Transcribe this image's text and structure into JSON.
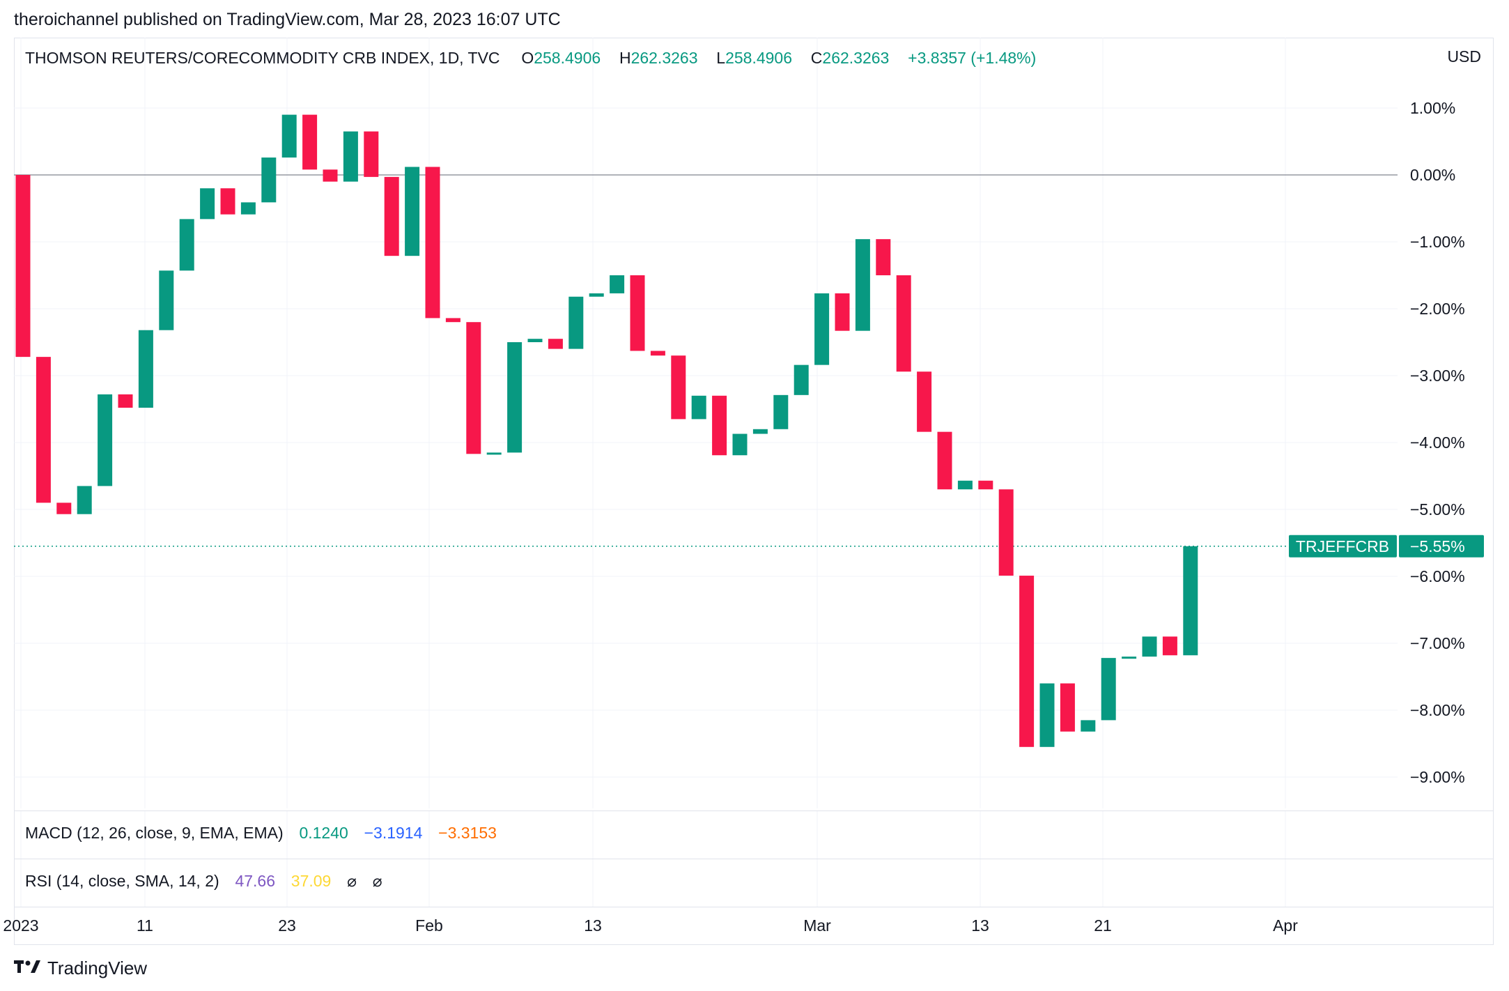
{
  "header": {
    "published": "theroichannel published on TradingView.com, Mar 28, 2023 16:07 UTC"
  },
  "legend": {
    "symbol": "THOMSON REUTERS/CORECOMMODITY CRB INDEX, 1D, TVC",
    "o_label": "O",
    "o_value": "258.4906",
    "h_label": "H",
    "h_value": "262.3263",
    "l_label": "L",
    "l_value": "258.4906",
    "c_label": "C",
    "c_value": "262.3263",
    "change": "+3.8357 (+1.48%)"
  },
  "currency": "USD",
  "macd": {
    "label": "MACD (12, 26, close, 9, EMA, EMA)",
    "v1": "0.1240",
    "v2": "−3.1914",
    "v3": "−3.3153"
  },
  "rsi": {
    "label": "RSI (14, close, SMA, 14, 2)",
    "v1": "47.66",
    "v2": "37.09",
    "v3": "⌀",
    "v4": "⌀"
  },
  "brand": {
    "name": "TradingView"
  },
  "colors": {
    "up": "#089981",
    "down": "#f7174b",
    "grid": "#f0f3fa",
    "macd": "#089981",
    "signal": "#2962ff",
    "hist": "#ff6d00",
    "rsi": "#7e57c2",
    "rsi_ma": "#fdd835"
  },
  "chart_data": {
    "type": "candlestick",
    "title": "THOMSON REUTERS/CORECOMMODITY CRB INDEX, 1D, TVC",
    "ylabel": "USD",
    "y_scale": "percent",
    "ylim": [
      -9.5,
      1.5
    ],
    "y_ticks": [
      "1.00%",
      "0.00%",
      "−1.00%",
      "−2.00%",
      "−3.00%",
      "−4.00%",
      "−5.00%",
      "−6.00%",
      "−7.00%",
      "−8.00%",
      "−9.00%"
    ],
    "y_tick_values": [
      1,
      0,
      -1,
      -2,
      -3,
      -4,
      -5,
      -6,
      -7,
      -8,
      -9
    ],
    "x_ticks": [
      "2023",
      "11",
      "23",
      "Feb",
      "13",
      "Mar",
      "13",
      "21",
      "Apr"
    ],
    "last_value": {
      "label": "TRJEFFCRB",
      "value": "−5.55%",
      "y": -5.55
    },
    "baseline": 0,
    "candles": [
      {
        "o": 0.0,
        "c": -2.72
      },
      {
        "o": -2.72,
        "c": -4.9
      },
      {
        "o": -4.9,
        "c": -5.07
      },
      {
        "o": -5.07,
        "c": -4.65
      },
      {
        "o": -4.65,
        "c": -3.28
      },
      {
        "o": -3.28,
        "c": -3.48
      },
      {
        "o": -3.48,
        "c": -2.32
      },
      {
        "o": -2.32,
        "c": -1.43
      },
      {
        "o": -1.43,
        "c": -0.66
      },
      {
        "o": -0.66,
        "c": -0.2
      },
      {
        "o": -0.2,
        "c": -0.59
      },
      {
        "o": -0.59,
        "c": -0.41
      },
      {
        "o": -0.41,
        "c": 0.26
      },
      {
        "o": 0.26,
        "c": 0.9
      },
      {
        "o": 0.9,
        "c": 0.08
      },
      {
        "o": 0.08,
        "c": -0.1
      },
      {
        "o": -0.1,
        "c": 0.65
      },
      {
        "o": 0.65,
        "c": -0.03
      },
      {
        "o": -0.03,
        "c": -1.21
      },
      {
        "o": -1.21,
        "c": 0.12
      },
      {
        "o": 0.12,
        "c": -2.14
      },
      {
        "o": -2.14,
        "c": -2.2
      },
      {
        "o": -2.2,
        "c": -4.17
      },
      {
        "o": -4.17,
        "c": -4.15
      },
      {
        "o": -4.15,
        "c": -2.5
      },
      {
        "o": -2.5,
        "c": -2.45
      },
      {
        "o": -2.45,
        "c": -2.6
      },
      {
        "o": -2.6,
        "c": -1.82
      },
      {
        "o": -1.82,
        "c": -1.77
      },
      {
        "o": -1.77,
        "c": -1.5
      },
      {
        "o": -1.5,
        "c": -2.63
      },
      {
        "o": -2.63,
        "c": -2.7
      },
      {
        "o": -2.7,
        "c": -3.65
      },
      {
        "o": -3.65,
        "c": -3.3
      },
      {
        "o": -3.3,
        "c": -4.19
      },
      {
        "o": -4.19,
        "c": -3.87
      },
      {
        "o": -3.87,
        "c": -3.8
      },
      {
        "o": -3.8,
        "c": -3.29
      },
      {
        "o": -3.29,
        "c": -2.84
      },
      {
        "o": -2.84,
        "c": -1.77
      },
      {
        "o": -1.77,
        "c": -2.33
      },
      {
        "o": -2.33,
        "c": -0.96
      },
      {
        "o": -0.96,
        "c": -1.5
      },
      {
        "o": -1.5,
        "c": -2.94
      },
      {
        "o": -2.94,
        "c": -3.84
      },
      {
        "o": -3.84,
        "c": -4.7
      },
      {
        "o": -4.7,
        "c": -4.57
      },
      {
        "o": -4.57,
        "c": -4.7
      },
      {
        "o": -4.7,
        "c": -5.99
      },
      {
        "o": -5.99,
        "c": -8.55
      },
      {
        "o": -8.55,
        "c": -7.6
      },
      {
        "o": -7.6,
        "c": -8.32
      },
      {
        "o": -8.32,
        "c": -8.15
      },
      {
        "o": -8.15,
        "c": -7.22
      },
      {
        "o": -7.22,
        "c": -7.2
      },
      {
        "o": -7.2,
        "c": -6.9
      },
      {
        "o": -6.9,
        "c": -7.18
      },
      {
        "o": -7.18,
        "c": -5.55
      }
    ]
  }
}
